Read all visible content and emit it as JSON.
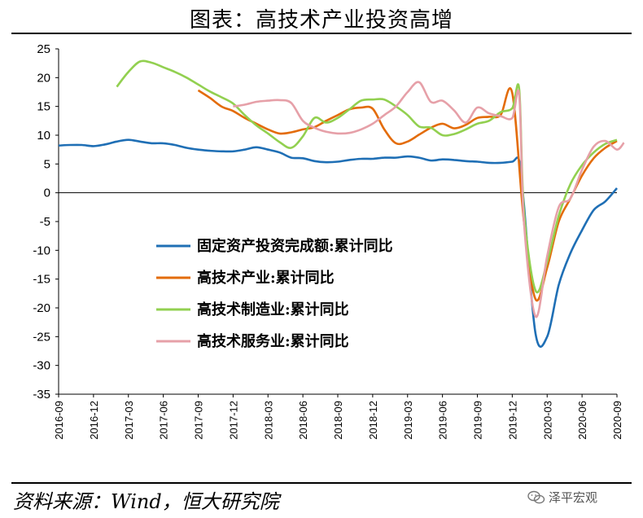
{
  "header": {
    "title": "图表：高技术产业投资高增"
  },
  "footer": {
    "source": "资料来源：Wind，恒大研究院",
    "watermark": "泽平宏观",
    "watermark_icon": "wechat-icon"
  },
  "chart_data": {
    "type": "line",
    "title": "图表：高技术产业投资高增",
    "xlabel": "",
    "ylabel": "",
    "ylim": [
      -35,
      25
    ],
    "yticks": [
      25,
      20,
      15,
      10,
      5,
      0,
      -5,
      -10,
      -15,
      -20,
      -25,
      -30,
      -35
    ],
    "xlim": [
      "2016-09",
      "2020-09"
    ],
    "xticks": [
      "2016-09",
      "2016-12",
      "2017-03",
      "2017-06",
      "2017-09",
      "2017-12",
      "2018-03",
      "2018-06",
      "2018-09",
      "2018-12",
      "2019-03",
      "2019-06",
      "2019-09",
      "2019-12",
      "2020-03",
      "2020-06",
      "2020-09"
    ],
    "grid": false,
    "legend_position": "center-left",
    "series": [
      {
        "name": "固定资产投资完成额:累计同比",
        "color": "#1f6fb5",
        "points": [
          [
            "2016-09",
            8.2
          ],
          [
            "2016-10",
            8.3
          ],
          [
            "2016-11",
            8.3
          ],
          [
            "2016-12",
            8.1
          ],
          [
            "2017-01",
            8.4
          ],
          [
            "2017-02",
            8.9
          ],
          [
            "2017-03",
            9.2
          ],
          [
            "2017-04",
            8.9
          ],
          [
            "2017-05",
            8.6
          ],
          [
            "2017-06",
            8.6
          ],
          [
            "2017-07",
            8.3
          ],
          [
            "2017-08",
            7.8
          ],
          [
            "2017-09",
            7.5
          ],
          [
            "2017-10",
            7.3
          ],
          [
            "2017-11",
            7.2
          ],
          [
            "2017-12",
            7.2
          ],
          [
            "2018-01",
            7.5
          ],
          [
            "2018-02",
            7.9
          ],
          [
            "2018-03",
            7.5
          ],
          [
            "2018-04",
            7.0
          ],
          [
            "2018-05",
            6.1
          ],
          [
            "2018-06",
            6.0
          ],
          [
            "2018-07",
            5.5
          ],
          [
            "2018-08",
            5.3
          ],
          [
            "2018-09",
            5.4
          ],
          [
            "2018-10",
            5.7
          ],
          [
            "2018-11",
            5.9
          ],
          [
            "2018-12",
            5.9
          ],
          [
            "2019-01",
            6.1
          ],
          [
            "2019-02",
            6.1
          ],
          [
            "2019-03",
            6.3
          ],
          [
            "2019-04",
            6.1
          ],
          [
            "2019-05",
            5.6
          ],
          [
            "2019-06",
            5.8
          ],
          [
            "2019-07",
            5.7
          ],
          [
            "2019-08",
            5.5
          ],
          [
            "2019-09",
            5.4
          ],
          [
            "2019-10",
            5.2
          ],
          [
            "2019-11",
            5.2
          ],
          [
            "2019-12",
            5.4
          ],
          [
            "2019-12",
            5.6
          ],
          [
            "2020-01",
            -2.0
          ],
          [
            "2020-02",
            -24.5
          ],
          [
            "2020-03",
            -25.0
          ],
          [
            "2020-04",
            -16.0
          ],
          [
            "2020-05",
            -10.5
          ],
          [
            "2020-06",
            -6.5
          ],
          [
            "2020-07",
            -3.0
          ],
          [
            "2020-08",
            -1.5
          ],
          [
            "2020-09",
            0.8
          ]
        ]
      },
      {
        "name": "高技术产业:累计同比",
        "color": "#e36c0a",
        "points": [
          [
            "2017-09",
            17.8
          ],
          [
            "2017-10",
            16.5
          ],
          [
            "2017-11",
            15.0
          ],
          [
            "2017-12",
            14.2
          ],
          [
            "2018-01",
            13.0
          ],
          [
            "2018-02",
            12.0
          ],
          [
            "2018-03",
            11.0
          ],
          [
            "2018-04",
            10.3
          ],
          [
            "2018-05",
            10.5
          ],
          [
            "2018-06",
            11.0
          ],
          [
            "2018-07",
            11.4
          ],
          [
            "2018-08",
            12.5
          ],
          [
            "2018-09",
            13.5
          ],
          [
            "2018-10",
            14.5
          ],
          [
            "2018-11",
            14.8
          ],
          [
            "2018-12",
            14.6
          ],
          [
            "2019-01",
            11.0
          ],
          [
            "2019-02",
            8.6
          ],
          [
            "2019-03",
            8.9
          ],
          [
            "2019-04",
            10.1
          ],
          [
            "2019-05",
            11.3
          ],
          [
            "2019-06",
            12.0
          ],
          [
            "2019-07",
            11.2
          ],
          [
            "2019-08",
            11.8
          ],
          [
            "2019-09",
            13.0
          ],
          [
            "2019-10",
            13.2
          ],
          [
            "2019-11",
            13.5
          ],
          [
            "2019-12",
            17.3
          ],
          [
            "2020-01",
            -5.0
          ],
          [
            "2020-02",
            -18.5
          ],
          [
            "2020-03",
            -13.0
          ],
          [
            "2020-04",
            -5.0
          ],
          [
            "2020-05",
            -1.0
          ],
          [
            "2020-06",
            3.0
          ],
          [
            "2020-07",
            6.0
          ],
          [
            "2020-08",
            7.8
          ],
          [
            "2020-09",
            9.0
          ]
        ]
      },
      {
        "name": "高技术制造业:累计同比",
        "color": "#92d050",
        "points": [
          [
            "2017-02",
            18.4
          ],
          [
            "2017-03",
            21.0
          ],
          [
            "2017-04",
            22.8
          ],
          [
            "2017-05",
            22.6
          ],
          [
            "2017-06",
            21.8
          ],
          [
            "2017-07",
            21.0
          ],
          [
            "2017-08",
            20.0
          ],
          [
            "2017-09",
            18.8
          ],
          [
            "2017-10",
            17.6
          ],
          [
            "2017-11",
            16.6
          ],
          [
            "2017-12",
            15.5
          ],
          [
            "2018-01",
            13.5
          ],
          [
            "2018-02",
            11.7
          ],
          [
            "2018-03",
            10.3
          ],
          [
            "2018-04",
            8.8
          ],
          [
            "2018-05",
            7.8
          ],
          [
            "2018-06",
            9.8
          ],
          [
            "2018-07",
            13.0
          ],
          [
            "2018-08",
            12.2
          ],
          [
            "2018-09",
            13.0
          ],
          [
            "2018-10",
            14.5
          ],
          [
            "2018-11",
            16.0
          ],
          [
            "2018-12",
            16.2
          ],
          [
            "2019-01",
            16.2
          ],
          [
            "2019-02",
            15.0
          ],
          [
            "2019-03",
            13.5
          ],
          [
            "2019-04",
            11.5
          ],
          [
            "2019-05",
            11.3
          ],
          [
            "2019-06",
            10.0
          ],
          [
            "2019-07",
            10.2
          ],
          [
            "2019-08",
            11.0
          ],
          [
            "2019-09",
            12.0
          ],
          [
            "2019-10",
            12.5
          ],
          [
            "2019-11",
            14.0
          ],
          [
            "2019-12",
            14.7
          ],
          [
            "2019-12",
            18.0
          ],
          [
            "2020-01",
            -3.0
          ],
          [
            "2020-02",
            -17.0
          ],
          [
            "2020-03",
            -12.0
          ],
          [
            "2020-04",
            -4.0
          ],
          [
            "2020-05",
            1.5
          ],
          [
            "2020-06",
            4.8
          ],
          [
            "2020-07",
            7.0
          ],
          [
            "2020-08",
            8.5
          ],
          [
            "2020-09",
            9.2
          ]
        ]
      },
      {
        "name": "高技术服务业:累计同比",
        "color": "#e6a0a8",
        "points": [
          [
            "2017-12",
            15.0
          ],
          [
            "2018-01",
            15.3
          ],
          [
            "2018-02",
            15.8
          ],
          [
            "2018-03",
            16.0
          ],
          [
            "2018-04",
            16.1
          ],
          [
            "2018-05",
            15.6
          ],
          [
            "2018-06",
            12.5
          ],
          [
            "2018-07",
            11.3
          ],
          [
            "2018-08",
            10.6
          ],
          [
            "2018-09",
            10.3
          ],
          [
            "2018-10",
            10.4
          ],
          [
            "2018-11",
            11.0
          ],
          [
            "2018-12",
            12.0
          ],
          [
            "2019-01",
            13.5
          ],
          [
            "2019-02",
            15.0
          ],
          [
            "2019-03",
            17.5
          ],
          [
            "2019-04",
            19.2
          ],
          [
            "2019-05",
            15.8
          ],
          [
            "2019-06",
            16.0
          ],
          [
            "2019-07",
            14.3
          ],
          [
            "2019-08",
            12.2
          ],
          [
            "2019-09",
            14.8
          ],
          [
            "2019-10",
            13.8
          ],
          [
            "2019-11",
            13.3
          ],
          [
            "2019-12",
            13.0
          ],
          [
            "2019-12",
            17.0
          ],
          [
            "2020-01",
            -5.0
          ],
          [
            "2020-02",
            -21.5
          ],
          [
            "2020-03",
            -11.0
          ],
          [
            "2020-04",
            -2.5
          ],
          [
            "2020-05",
            -1.0
          ],
          [
            "2020-06",
            4.0
          ],
          [
            "2020-07",
            8.0
          ],
          [
            "2020-08",
            9.0
          ],
          [
            "2020-09",
            7.5
          ],
          [
            "2020-09",
            8.7
          ]
        ]
      }
    ]
  }
}
